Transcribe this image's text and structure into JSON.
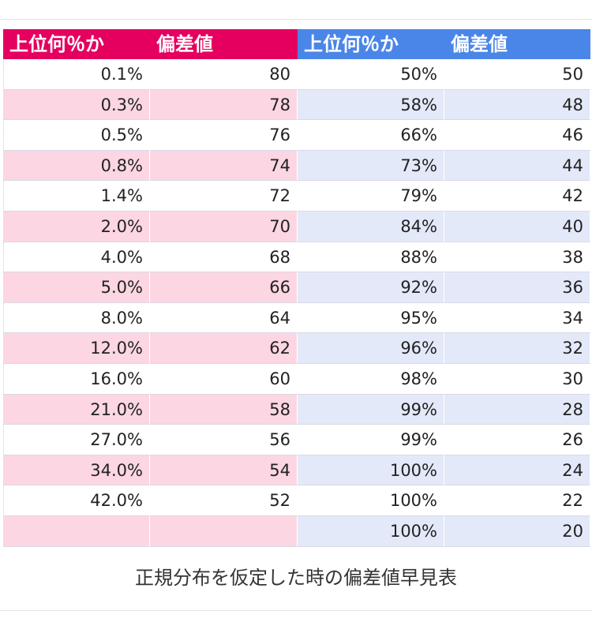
{
  "colors": {
    "left_header": "#e5005f",
    "right_header": "#4a86e8",
    "left_stripe": "#fcd6e2",
    "right_stripe": "#e3e9f9",
    "white": "#ffffff"
  },
  "headers": [
    "上位何％か",
    "偏差値",
    "上位何％か",
    "偏差値"
  ],
  "rows": [
    [
      "0.1%",
      "80",
      "50%",
      "50"
    ],
    [
      "0.3%",
      "78",
      "58%",
      "48"
    ],
    [
      "0.5%",
      "76",
      "66%",
      "46"
    ],
    [
      "0.8%",
      "74",
      "73%",
      "44"
    ],
    [
      "1.4%",
      "72",
      "79%",
      "42"
    ],
    [
      "2.0%",
      "70",
      "84%",
      "40"
    ],
    [
      "4.0%",
      "68",
      "88%",
      "38"
    ],
    [
      "5.0%",
      "66",
      "92%",
      "36"
    ],
    [
      "8.0%",
      "64",
      "95%",
      "34"
    ],
    [
      "12.0%",
      "62",
      "96%",
      "32"
    ],
    [
      "16.0%",
      "60",
      "98%",
      "30"
    ],
    [
      "21.0%",
      "58",
      "99%",
      "28"
    ],
    [
      "27.0%",
      "56",
      "99%",
      "26"
    ],
    [
      "34.0%",
      "54",
      "100%",
      "24"
    ],
    [
      "42.0%",
      "52",
      "100%",
      "22"
    ],
    [
      "",
      "",
      "100%",
      "20"
    ]
  ],
  "caption": "正規分布を仮定した時の偏差値早見表"
}
